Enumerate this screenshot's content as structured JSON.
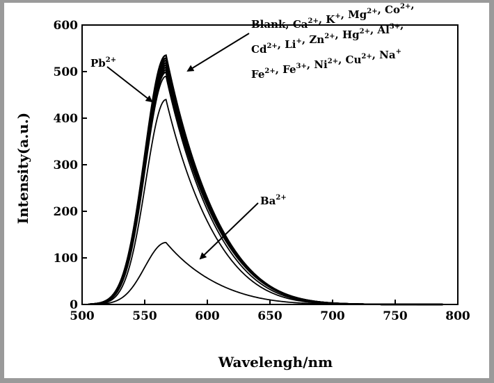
{
  "chart_data": {
    "type": "line",
    "xlabel": "Wavelengh/nm",
    "ylabel": "Intensity(a.u.)",
    "xlim": [
      500,
      800
    ],
    "ylim": [
      0,
      600
    ],
    "x_ticks": [
      500,
      550,
      600,
      650,
      700,
      750,
      800
    ],
    "y_ticks": [
      0,
      100,
      200,
      300,
      400,
      500,
      600
    ],
    "x_tick_labels": [
      "500",
      "550",
      "600",
      "650",
      "700",
      "750",
      "800"
    ],
    "y_tick_labels": [
      "0",
      "100",
      "200",
      "300",
      "400",
      "500",
      "600"
    ],
    "grid": false,
    "legend": "none",
    "peak_wavelength": 567,
    "series": [
      {
        "label_key": "group",
        "peak": 535,
        "width_scale": 1.0
      },
      {
        "label_key": "group",
        "peak": 529,
        "width_scale": 1.0
      },
      {
        "label_key": "group",
        "peak": 524,
        "width_scale": 1.0
      },
      {
        "label_key": "group",
        "peak": 519,
        "width_scale": 1.0
      },
      {
        "label_key": "group",
        "peak": 514,
        "width_scale": 1.0
      },
      {
        "label_key": "group",
        "peak": 509,
        "width_scale": 1.0
      },
      {
        "label_key": "group",
        "peak": 504,
        "width_scale": 1.0
      },
      {
        "label_key": "group",
        "peak": 499,
        "width_scale": 1.0
      },
      {
        "label_key": "pb",
        "peak": 490,
        "width_scale": 0.97
      },
      {
        "label_key": "x",
        "peak": 440,
        "width_scale": 0.95
      },
      {
        "label_key": "ba",
        "peak": 133,
        "width_scale": 1.0
      }
    ],
    "annotations": {
      "group": {
        "line1": [
          [
            "Blank, Ca",
            "2+"
          ],
          [
            ", K",
            "+"
          ],
          [
            ", Mg",
            "2+"
          ],
          [
            ", Co",
            "2+"
          ],
          [
            ",",
            ""
          ]
        ],
        "line2": [
          [
            "Cd",
            "2+"
          ],
          [
            ", Li",
            "+"
          ],
          [
            ", Zn",
            "2+"
          ],
          [
            ", Hg",
            "2+"
          ],
          [
            ", Al",
            "3+"
          ],
          [
            ",",
            ""
          ]
        ],
        "line3": [
          [
            "Fe",
            "2+"
          ],
          [
            ", Fe",
            "3+"
          ],
          [
            ", Ni",
            "2+"
          ],
          [
            ", Cu",
            "2+"
          ],
          [
            ", Na",
            "+"
          ]
        ]
      },
      "pb": [
        [
          "Pb",
          "2+"
        ]
      ],
      "ba": [
        [
          "Ba",
          "2+"
        ]
      ]
    }
  }
}
